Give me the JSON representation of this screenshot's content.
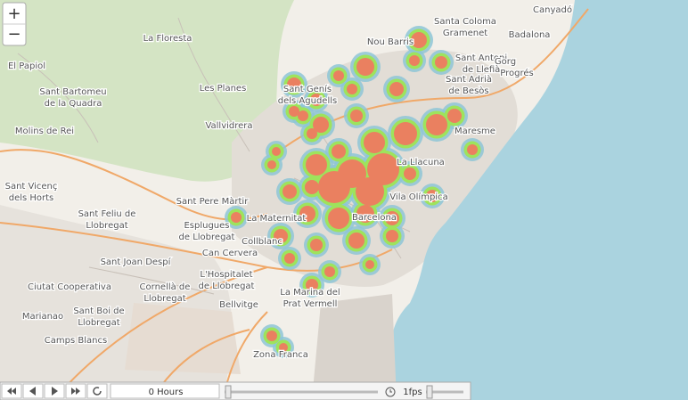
{
  "zoom": {
    "in": "+",
    "out": "−"
  },
  "places": [
    [
      "Santa Coloma",
      "Gramenet"
    ],
    [
      "Badalona"
    ],
    [
      "Nou Barris"
    ],
    [
      "Sant Antoni",
      "de Llefià"
    ],
    [
      "Sant Adrià",
      "de Besòs"
    ],
    [
      "La Floresta"
    ],
    [
      "El Papiol"
    ],
    [
      "Sant Bartomeu",
      "de la Quadra"
    ],
    [
      "Les Planes"
    ],
    [
      "Vallvidrera"
    ],
    [
      "Molins de Rei"
    ],
    [
      "Sant Vicenç",
      "dels Horts"
    ],
    [
      "Sant Pere Màrtir"
    ],
    [
      "Sant Feliu de",
      "Llobregat"
    ],
    [
      "Esplugues",
      "de Llobregat"
    ],
    [
      "Sant Joan Despí"
    ],
    [
      "Cornellà de",
      "Llobregat"
    ],
    [
      "L'Hospitalet",
      "de Llobregat"
    ],
    [
      "Sant Boi de",
      "Llobregat"
    ],
    [
      "Collblanc"
    ],
    [
      "Can Cervera"
    ],
    [
      "La Maternitat"
    ],
    [
      "Barcelona"
    ],
    [
      "Vila Olímpica"
    ],
    [
      "La Llacuna"
    ],
    [
      "Maresme"
    ],
    [
      "Zona Franca"
    ],
    [
      "La Marina del",
      "Prat Vermell"
    ],
    [
      "Bellvitge"
    ],
    [
      "Camps Blancs"
    ],
    [
      "Marianao"
    ],
    [
      "Ciutat Cooperativa"
    ],
    [
      "Canyadó"
    ],
    [
      "Progrés"
    ],
    [
      "Gorg"
    ],
    [
      "Sant Genís",
      "dels Agudells"
    ]
  ],
  "player": {
    "time": "0 Hours",
    "speed": "1fps"
  }
}
